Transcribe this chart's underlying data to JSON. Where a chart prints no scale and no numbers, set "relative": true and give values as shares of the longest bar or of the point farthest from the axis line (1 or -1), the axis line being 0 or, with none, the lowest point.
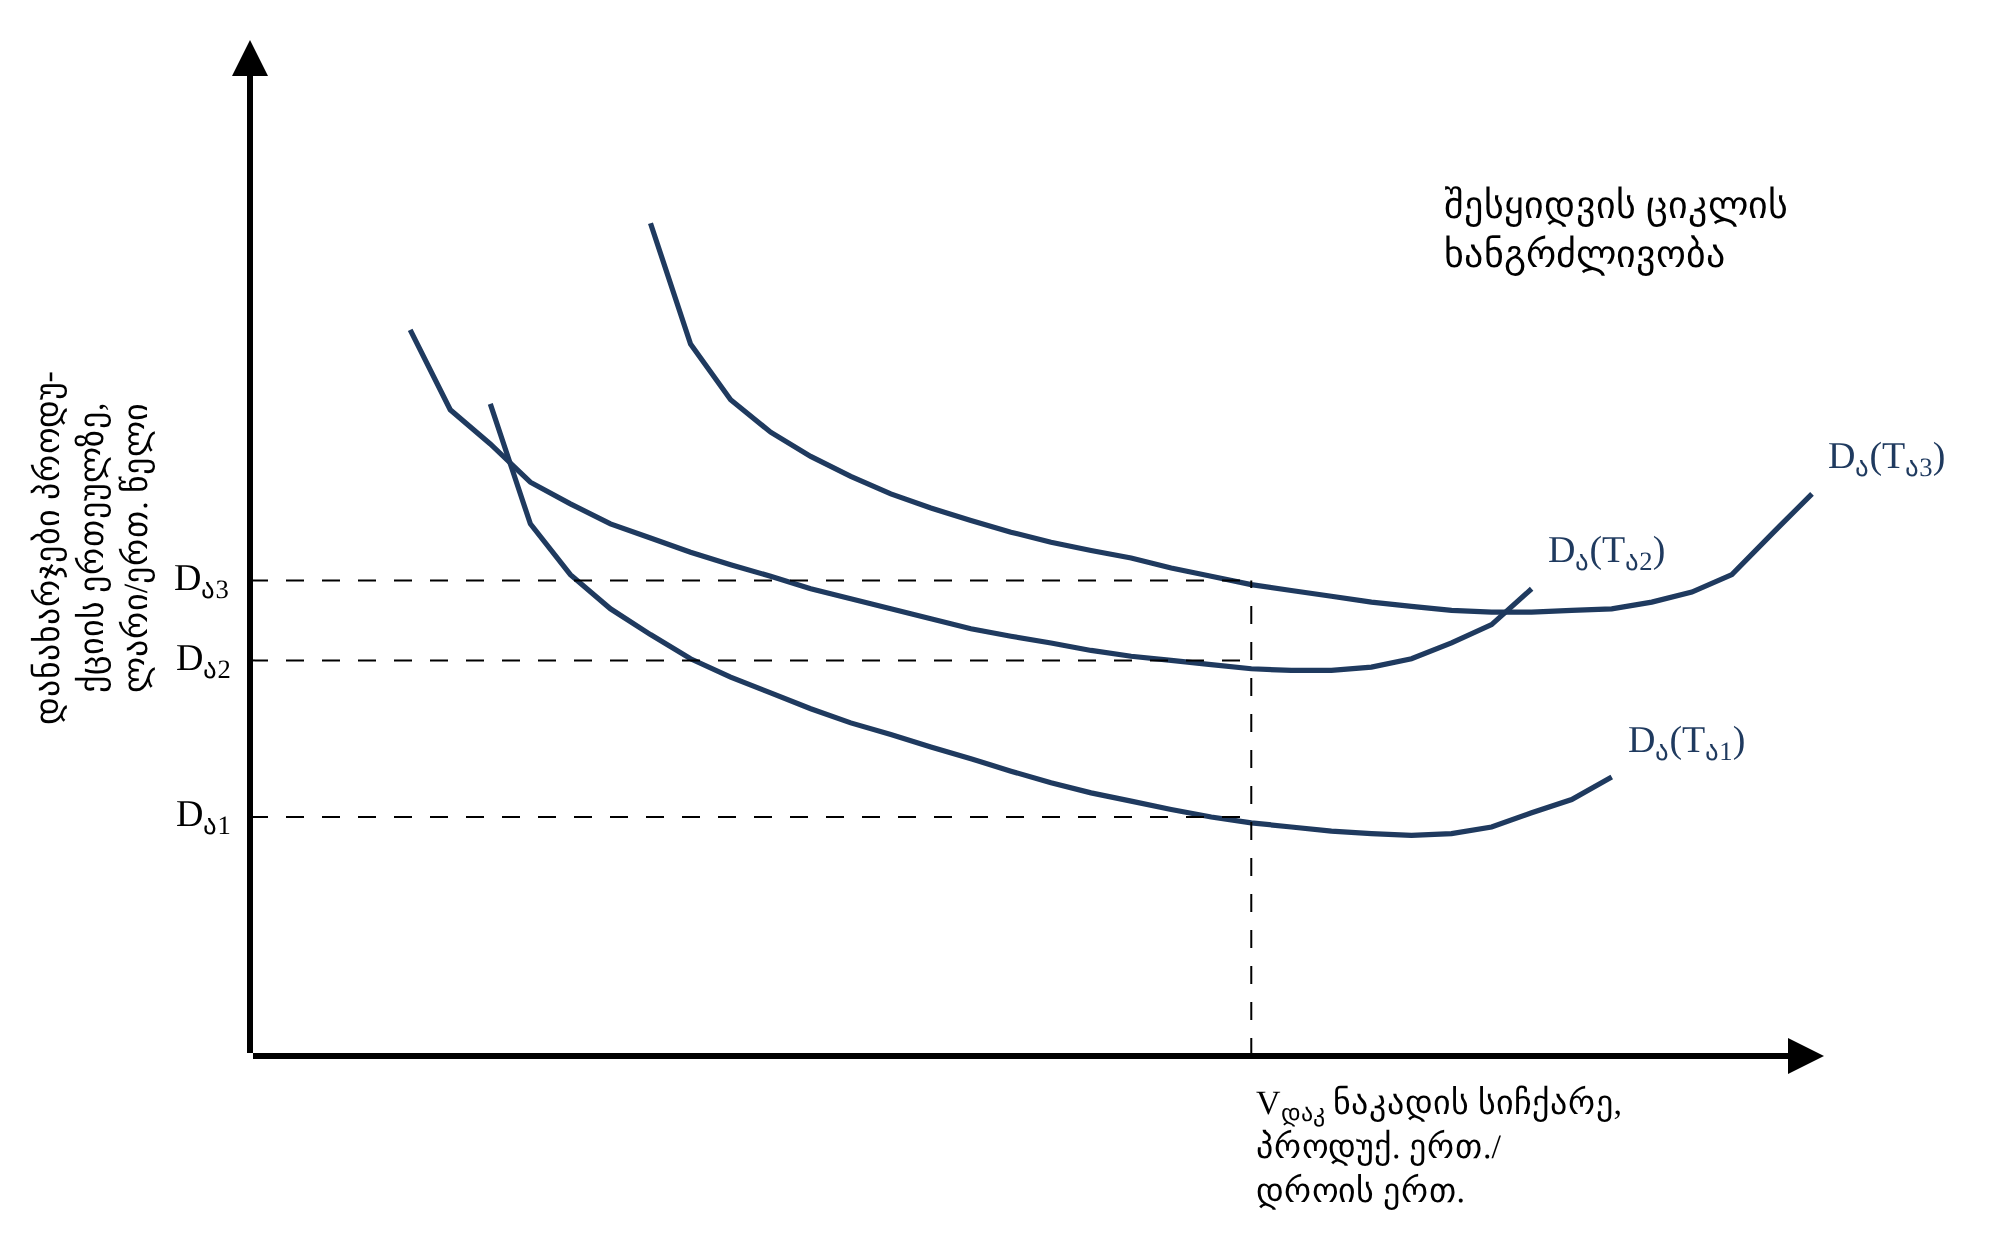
{
  "chart_data": {
    "type": "line",
    "relative": true,
    "marker": "none",
    "line_style": "solid",
    "xlabel": "V$_{დაკ}$ ნაკადის სიჩქარე,\nპროდუქ. ერთ./\nდროის ერთ.",
    "ylabel": "დანახარჯები პროდუ-\nქციის ერთეულზე,\nლარი/ერთ. წელი",
    "annotations": [
      "შესყიდვის ციკლის\nხანგრძლივობა"
    ],
    "categories": [
      null,
      null,
      null,
      null,
      null,
      null,
      null,
      null,
      null,
      null,
      null,
      null,
      null,
      null,
      null,
      null,
      null,
      null,
      null,
      null,
      null,
      null,
      null,
      null,
      null,
      null,
      null,
      null,
      null,
      null,
      null,
      null,
      null,
      null,
      null,
      null,
      null,
      null,
      null
    ],
    "series": [
      {
        "name": "D$_{ა}$(T$_{ა1}$)",
        "color": "#1f3a5f",
        "values": [
          null,
          null,
          null,
          null,
          null,
          0.783,
          0.639,
          0.578,
          0.537,
          0.506,
          0.477,
          0.455,
          0.436,
          0.417,
          0.4,
          0.386,
          0.371,
          0.357,
          0.342,
          0.328,
          0.316,
          0.306,
          0.296,
          0.287,
          0.28,
          0.275,
          0.27,
          0.267,
          0.265,
          0.267,
          0.275,
          0.292,
          0.308,
          0.335,
          null,
          null,
          null,
          null,
          null
        ]
      },
      {
        "name": "D$_{ა}$(T$_{ა2}$)",
        "color": "#1f3a5f",
        "values": [
          null,
          null,
          null,
          0.872,
          0.776,
          0.735,
          0.689,
          0.663,
          0.639,
          0.622,
          0.605,
          0.59,
          0.576,
          0.561,
          0.549,
          0.537,
          0.525,
          0.513,
          0.504,
          0.496,
          0.487,
          0.48,
          0.475,
          0.47,
          0.465,
          0.463,
          0.463,
          0.467,
          0.477,
          0.496,
          0.518,
          0.561,
          null,
          null,
          null,
          null,
          null,
          null,
          null
        ]
      },
      {
        "name": "D$_{ა}$(T$_{ა3}$)",
        "color": "#1f3a5f",
        "values": [
          null,
          null,
          null,
          null,
          null,
          null,
          null,
          null,
          null,
          1.0,
          0.855,
          0.788,
          0.749,
          0.72,
          0.696,
          0.675,
          0.658,
          0.643,
          0.629,
          0.617,
          0.607,
          0.598,
          0.586,
          0.576,
          0.566,
          0.559,
          0.552,
          0.545,
          0.54,
          0.535,
          0.533,
          0.533,
          0.535,
          0.537,
          0.545,
          0.557,
          0.578,
          0.627,
          0.675
        ]
      }
    ],
    "ref_lines": [
      {
        "axis": "y",
        "value": 0.571,
        "label": "D$_{ა3}$",
        "line_style": "dashed",
        "color": "#000000"
      },
      {
        "axis": "y",
        "value": 0.475,
        "label": "D$_{ა2}$",
        "line_style": "dashed",
        "color": "#000000"
      },
      {
        "axis": "y",
        "value": 0.287,
        "label": "D$_{ა1}$",
        "line_style": "dashed",
        "color": "#000000"
      }
    ]
  }
}
